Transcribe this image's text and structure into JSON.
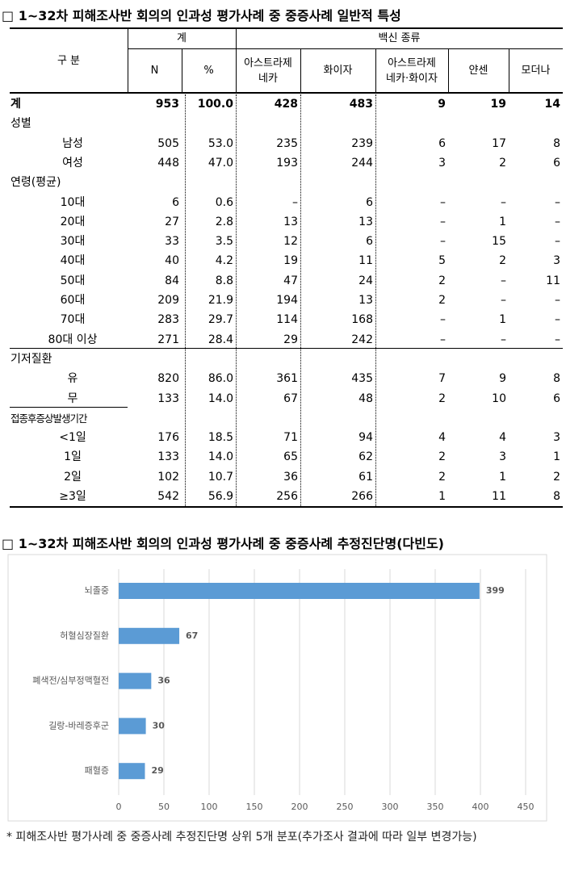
{
  "section1": {
    "title": "□ 1~32차 피해조사반 회의의 인과성 평가사례 중 중증사례 일반적 특성"
  },
  "table": {
    "header": {
      "division": "구 분",
      "total": "계",
      "vaccine": "백신 종류",
      "columns": [
        "N",
        "%",
        "아스트라제\n네카",
        "화이자",
        "아스트라제\n네카·화이자",
        "얀센",
        "모더나"
      ]
    },
    "rows": [
      {
        "cells": [
          "계",
          "953",
          "100.0",
          "428",
          "483",
          "9",
          "19",
          "14"
        ]
      },
      {
        "cells": [
          "성별"
        ]
      },
      {
        "cells": [
          "남성",
          "505",
          "53.0",
          "235",
          "239",
          "6",
          "17",
          "8"
        ]
      },
      {
        "cells": [
          "여성",
          "448",
          "47.0",
          "193",
          "244",
          "3",
          "2",
          "6"
        ]
      },
      {
        "cells": [
          "연령(평균)"
        ]
      },
      {
        "cells": [
          "10대",
          "6",
          "0.6",
          "–",
          "6",
          "–",
          "–",
          "–"
        ]
      },
      {
        "cells": [
          "20대",
          "27",
          "2.8",
          "13",
          "13",
          "–",
          "1",
          "–"
        ]
      },
      {
        "cells": [
          "30대",
          "33",
          "3.5",
          "12",
          "6",
          "–",
          "15",
          "–"
        ]
      },
      {
        "cells": [
          "40대",
          "40",
          "4.2",
          "19",
          "11",
          "5",
          "2",
          "3"
        ]
      },
      {
        "cells": [
          "50대",
          "84",
          "8.8",
          "47",
          "24",
          "2",
          "–",
          "11"
        ]
      },
      {
        "cells": [
          "60대",
          "209",
          "21.9",
          "194",
          "13",
          "2",
          "–",
          "–"
        ]
      },
      {
        "cells": [
          "70대",
          "283",
          "29.7",
          "114",
          "168",
          "–",
          "1",
          "–"
        ]
      },
      {
        "cells": [
          "80대 이상",
          "271",
          "28.4",
          "29",
          "242",
          "–",
          "–",
          "–"
        ]
      },
      {
        "cells": [
          "기저질환"
        ]
      },
      {
        "cells": [
          "유",
          "820",
          "86.0",
          "361",
          "435",
          "7",
          "9",
          "8"
        ]
      },
      {
        "cells": [
          "무",
          "133",
          "14.0",
          "67",
          "48",
          "2",
          "10",
          "6"
        ]
      },
      {
        "cells": [
          "접종후증상발생기간"
        ]
      },
      {
        "cells": [
          "<1일",
          "176",
          "18.5",
          "71",
          "94",
          "4",
          "4",
          "3"
        ]
      },
      {
        "cells": [
          "1일",
          "133",
          "14.0",
          "65",
          "62",
          "2",
          "3",
          "1"
        ]
      },
      {
        "cells": [
          "2일",
          "102",
          "10.7",
          "36",
          "61",
          "2",
          "1",
          "2"
        ]
      },
      {
        "cells": [
          "≥3일",
          "542",
          "56.9",
          "256",
          "266",
          "1",
          "11",
          "8"
        ]
      }
    ]
  },
  "section2": {
    "title": "□ 1~32차 피해조사반 회의의 인과성 평가사례 중 중증사례 추정진단명(다빈도)"
  },
  "chart_data": {
    "type": "bar",
    "orientation": "horizontal",
    "categories": [
      "뇌졸중",
      "허혈심장질환",
      "폐색전/심부정맥혈전",
      "길랑-바레증후군",
      "패혈증"
    ],
    "values": [
      399,
      67,
      36,
      30,
      29
    ],
    "color": "#5b9bd5",
    "xlim": [
      0,
      450
    ],
    "xticks": [
      0,
      50,
      100,
      150,
      200,
      250,
      300,
      350,
      400,
      450
    ],
    "grid": true
  },
  "footnote": "* 피해조사반 평가사례 중 중증사례 추정진단명 상위 5개 분포(추가조사 결과에 따라 일부 변경가능)"
}
